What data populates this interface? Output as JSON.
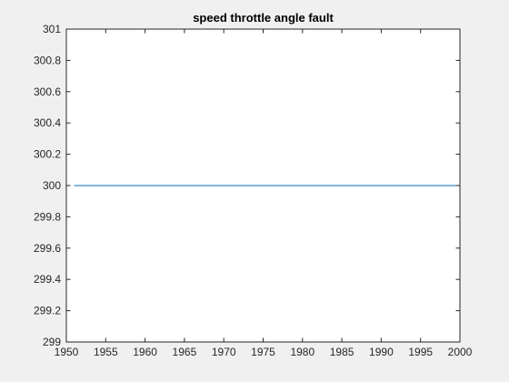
{
  "chart_data": {
    "type": "line",
    "title": "speed throttle angle fault",
    "xlabel": "",
    "ylabel": "",
    "xlim": [
      1950,
      2000
    ],
    "ylim": [
      299,
      301
    ],
    "x_ticks": [
      1950,
      1955,
      1960,
      1965,
      1970,
      1975,
      1980,
      1985,
      1990,
      1995,
      2000
    ],
    "y_ticks": [
      299,
      299.2,
      299.4,
      299.6,
      299.8,
      300,
      300.2,
      300.4,
      300.6,
      300.8,
      301
    ],
    "x_tick_labels": [
      "1950",
      "1955",
      "1960",
      "1965",
      "1970",
      "1975",
      "1980",
      "1985",
      "1990",
      "1995",
      "2000"
    ],
    "y_tick_labels": [
      "299",
      "299.2",
      "299.4",
      "299.6",
      "299.8",
      "300",
      "300.2",
      "300.4",
      "300.6",
      "300.8",
      "301"
    ],
    "grid": false,
    "series": [
      {
        "color": "#0072bd",
        "x": [
          1951,
          2000
        ],
        "y": [
          300,
          300
        ]
      }
    ]
  }
}
